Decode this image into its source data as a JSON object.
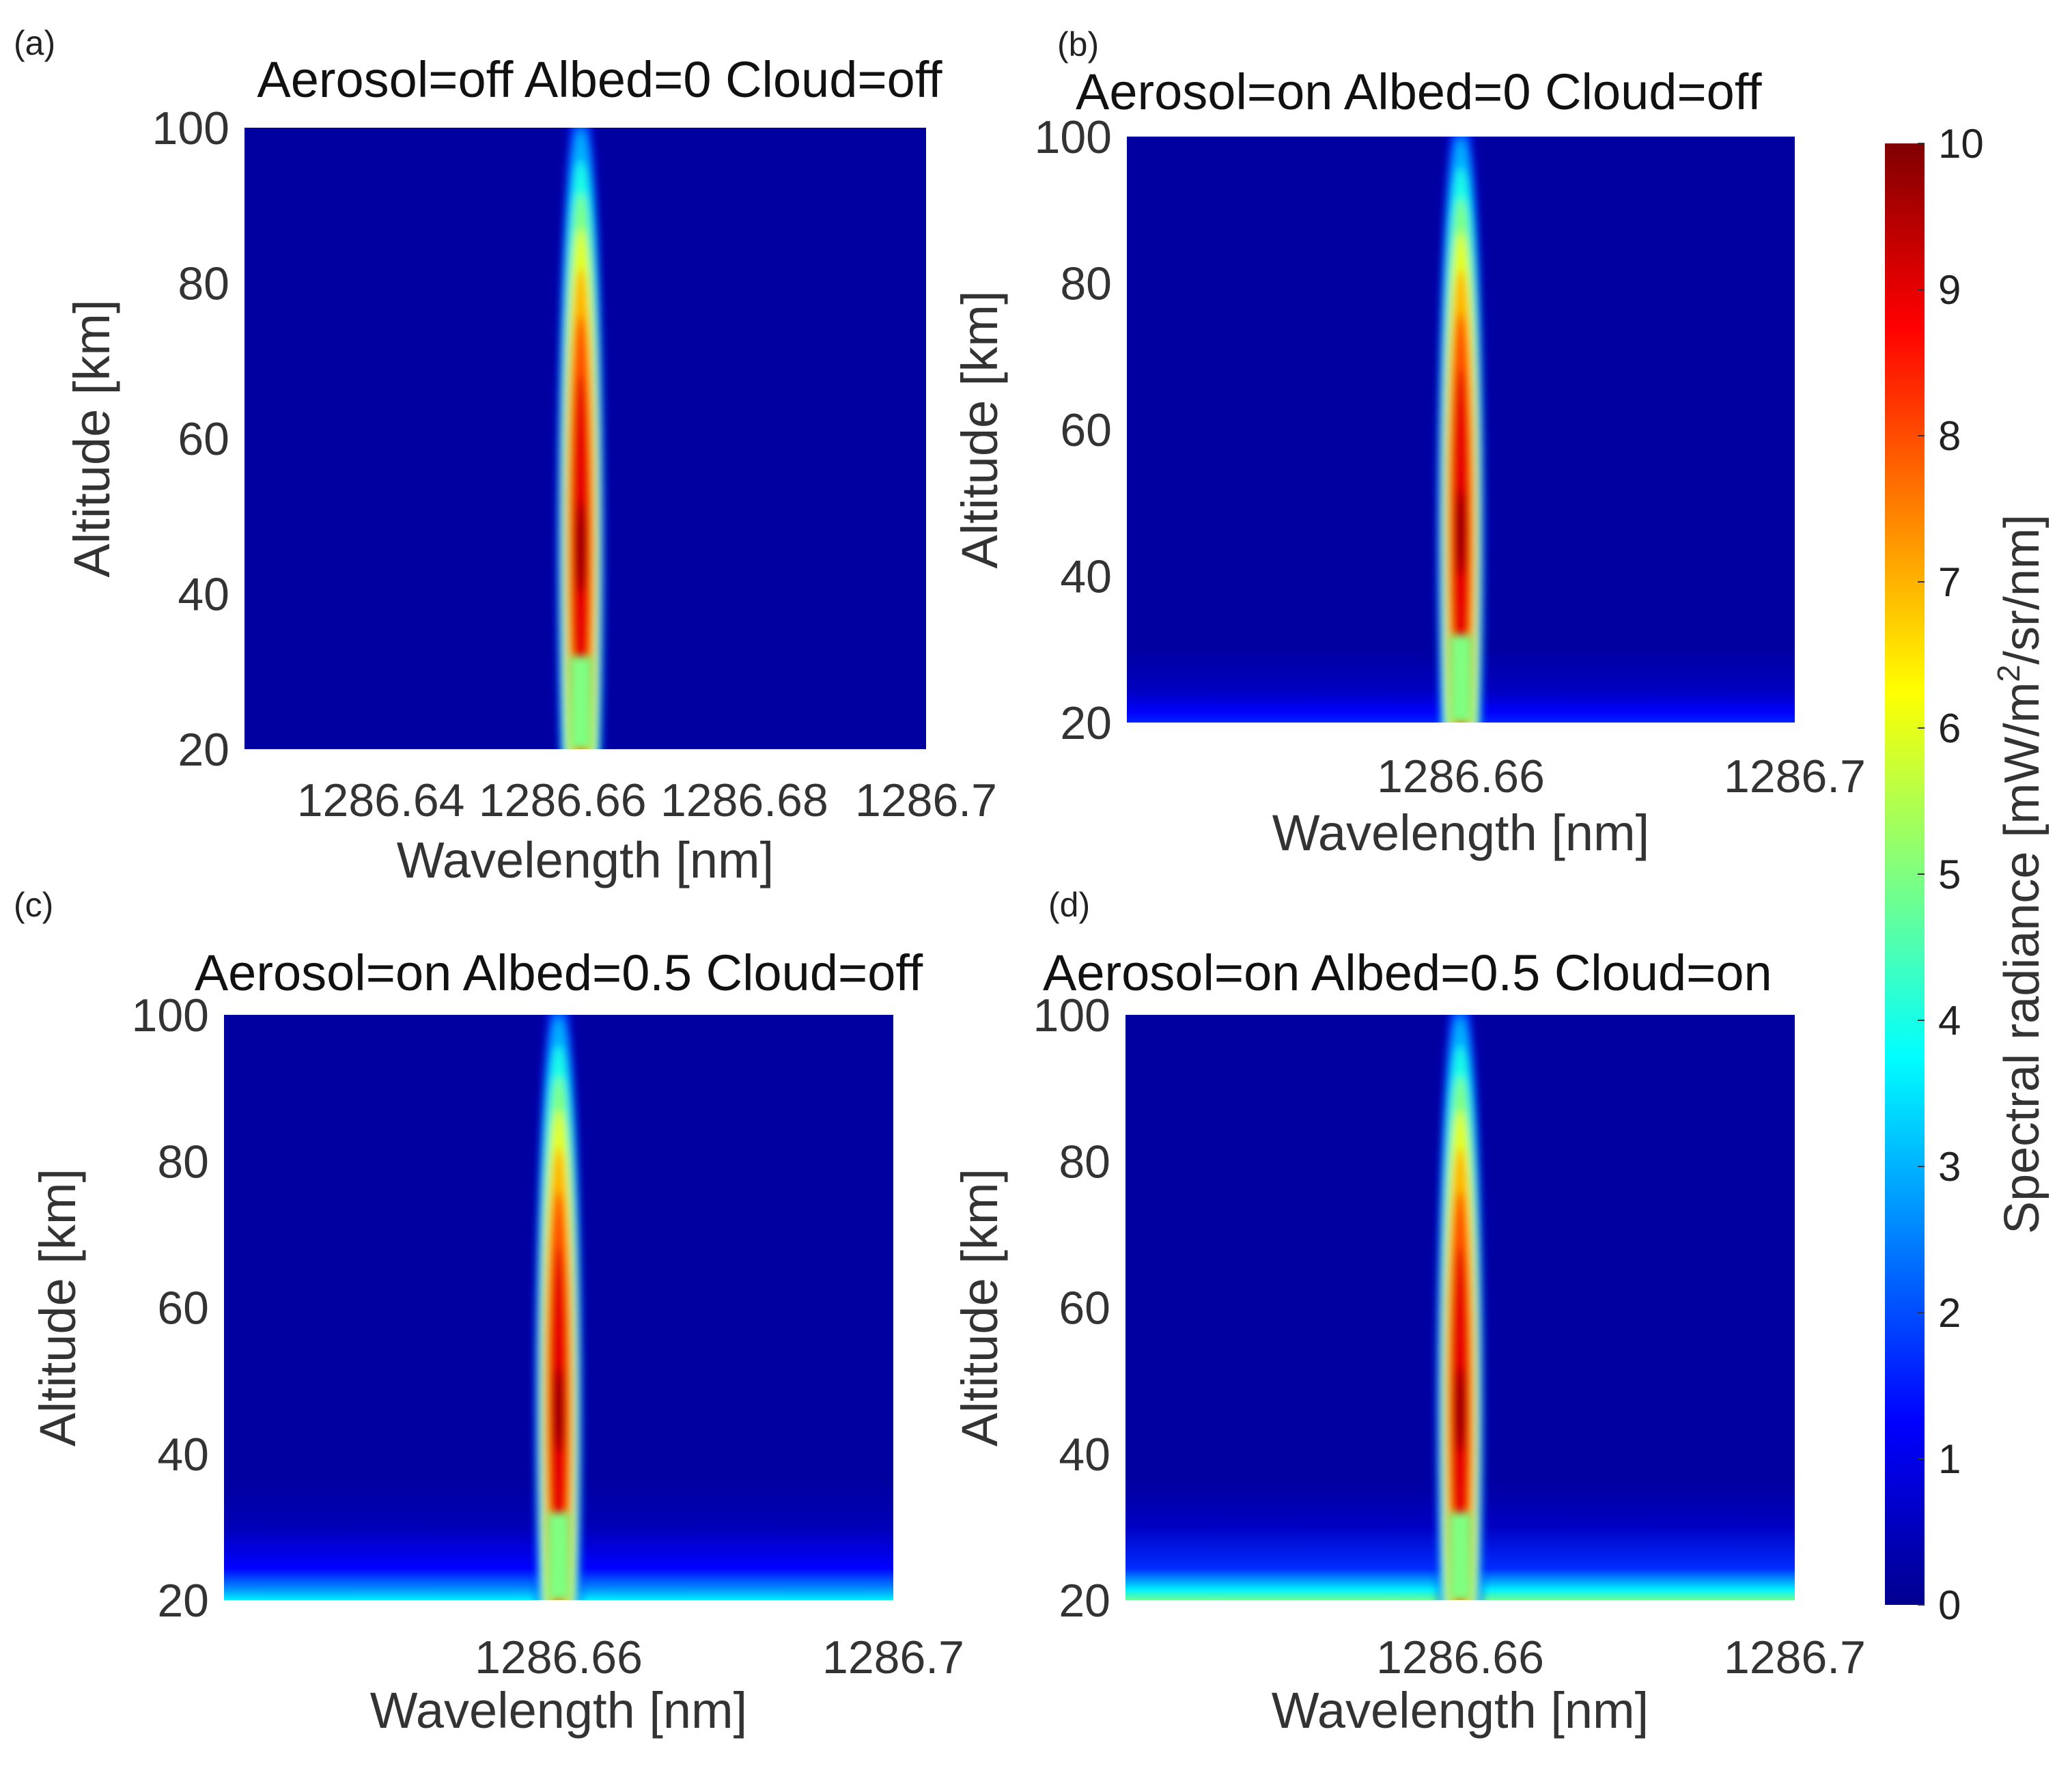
{
  "chart_data": [
    {
      "type": "heatmap",
      "panel_label": "(a)",
      "title": "Aerosol=off Albed=0 Cloud=off",
      "xlabel": "Wavelength [nm]",
      "ylabel": "Altitude [km]",
      "xlim": [
        1286.625,
        1286.7
      ],
      "ylim": [
        20,
        100
      ],
      "xticks": [
        1286.64,
        1286.66,
        1286.68,
        1286.7
      ],
      "xtick_labels": [
        "1286.64",
        "1286.66",
        "1286.68",
        "1286.7"
      ],
      "yticks": [
        20,
        40,
        60,
        80,
        100
      ],
      "ytick_labels": [
        "20",
        "40",
        "60",
        "80",
        "100"
      ],
      "line_center_nm": 1286.662,
      "peak_radiance": 10,
      "peak_altitude_km": 46,
      "background_surface_radiance": 0.3
    },
    {
      "type": "heatmap",
      "panel_label": "(b)",
      "title": "Aerosol=on Albed=0 Cloud=off",
      "xlabel": "Wavelength [nm]",
      "ylabel": "Altitude [km]",
      "xlim": [
        1286.62,
        1286.7
      ],
      "ylim": [
        20,
        100
      ],
      "xticks": [
        1286.66,
        1286.7
      ],
      "xtick_labels": [
        "1286.66",
        "1286.7"
      ],
      "yticks": [
        20,
        40,
        60,
        80,
        100
      ],
      "ytick_labels": [
        "20",
        "40",
        "60",
        "80",
        "100"
      ],
      "line_center_nm": 1286.66,
      "peak_radiance": 10,
      "peak_altitude_km": 46,
      "background_surface_radiance": 1.6
    },
    {
      "type": "heatmap",
      "panel_label": "(c)",
      "title": "Aerosol=on Albed=0.5 Cloud=off",
      "xlabel": "Wavelength [nm]",
      "ylabel": "Altitude [km]",
      "xlim": [
        1286.62,
        1286.7
      ],
      "ylim": [
        20,
        100
      ],
      "xticks": [
        1286.66,
        1286.7
      ],
      "xtick_labels": [
        "1286.66",
        "1286.7"
      ],
      "yticks": [
        20,
        40,
        60,
        80,
        100
      ],
      "ytick_labels": [
        "20",
        "40",
        "60",
        "80",
        "100"
      ],
      "line_center_nm": 1286.66,
      "peak_radiance": 10,
      "peak_altitude_km": 46,
      "background_surface_radiance": 3.6
    },
    {
      "type": "heatmap",
      "panel_label": "(d)",
      "title": "Aerosol=on Albed=0.5 Cloud=on",
      "xlabel": "Wavelength [nm]",
      "ylabel": "Altitude [km]",
      "xlim": [
        1286.62,
        1286.7
      ],
      "ylim": [
        20,
        100
      ],
      "xticks": [
        1286.66,
        1286.7
      ],
      "xtick_labels": [
        "1286.66",
        "1286.7"
      ],
      "yticks": [
        20,
        40,
        60,
        80,
        100
      ],
      "ytick_labels": [
        "20",
        "40",
        "60",
        "80",
        "100"
      ],
      "line_center_nm": 1286.66,
      "peak_radiance": 10,
      "peak_altitude_km": 46,
      "background_surface_radiance": 4.8
    }
  ],
  "colorbar": {
    "label": "Spectral radiance [mW/m",
    "label_superscript": "2",
    "label_suffix": "/sr/nm]",
    "range": [
      0,
      10
    ],
    "ticks": [
      0,
      1,
      2,
      3,
      4,
      5,
      6,
      7,
      8,
      9,
      10
    ],
    "tick_labels": [
      "0",
      "1",
      "2",
      "3",
      "4",
      "5",
      "6",
      "7",
      "8",
      "9",
      "10"
    ],
    "colormap": "jet",
    "colormap_stops": [
      "#00008f",
      "#0000ff",
      "#00ffff",
      "#ffff00",
      "#ff0000",
      "#800000"
    ]
  }
}
